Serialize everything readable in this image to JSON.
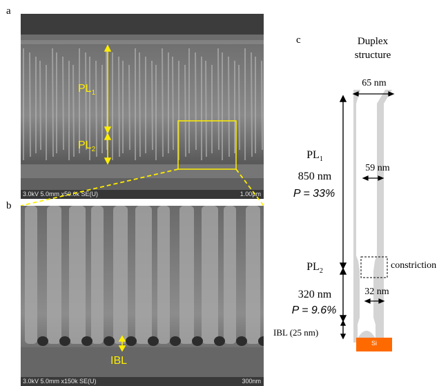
{
  "panels": {
    "a": "a",
    "b": "b",
    "c": "c"
  },
  "panel_a": {
    "pl1_main": "PL",
    "pl1_sub": "1",
    "pl2_main": "PL",
    "pl2_sub": "2",
    "sem_info": "3.0kV 5.0mm x50.0k SE(U)",
    "scale_label": "1.00μm"
  },
  "panel_b": {
    "ibl_label": "IBL",
    "sem_info": "3.0kV 5.0mm x150k SE(U)",
    "scale_label": "300nm"
  },
  "panel_c": {
    "title_line1": "Duplex",
    "title_line2": "structure",
    "top_width": "65 nm",
    "pl1_main": "PL",
    "pl1_sub": "1",
    "pl1_thickness": "850 nm",
    "pl1_porosity": "P = 33%",
    "mid_width": "59 nm",
    "constriction": "constriction",
    "pl2_main": "PL",
    "pl2_sub": "2",
    "pl2_thickness": "320 nm",
    "pl2_porosity": "P = 9.6%",
    "bottom_width": "32 nm",
    "ibl": "IBL (25 nm)",
    "substrate": "Si"
  },
  "colors": {
    "annotation_yellow": "#ffee00",
    "pore_gray": "#d4d4d4",
    "substrate_orange": "#ff6a00"
  }
}
